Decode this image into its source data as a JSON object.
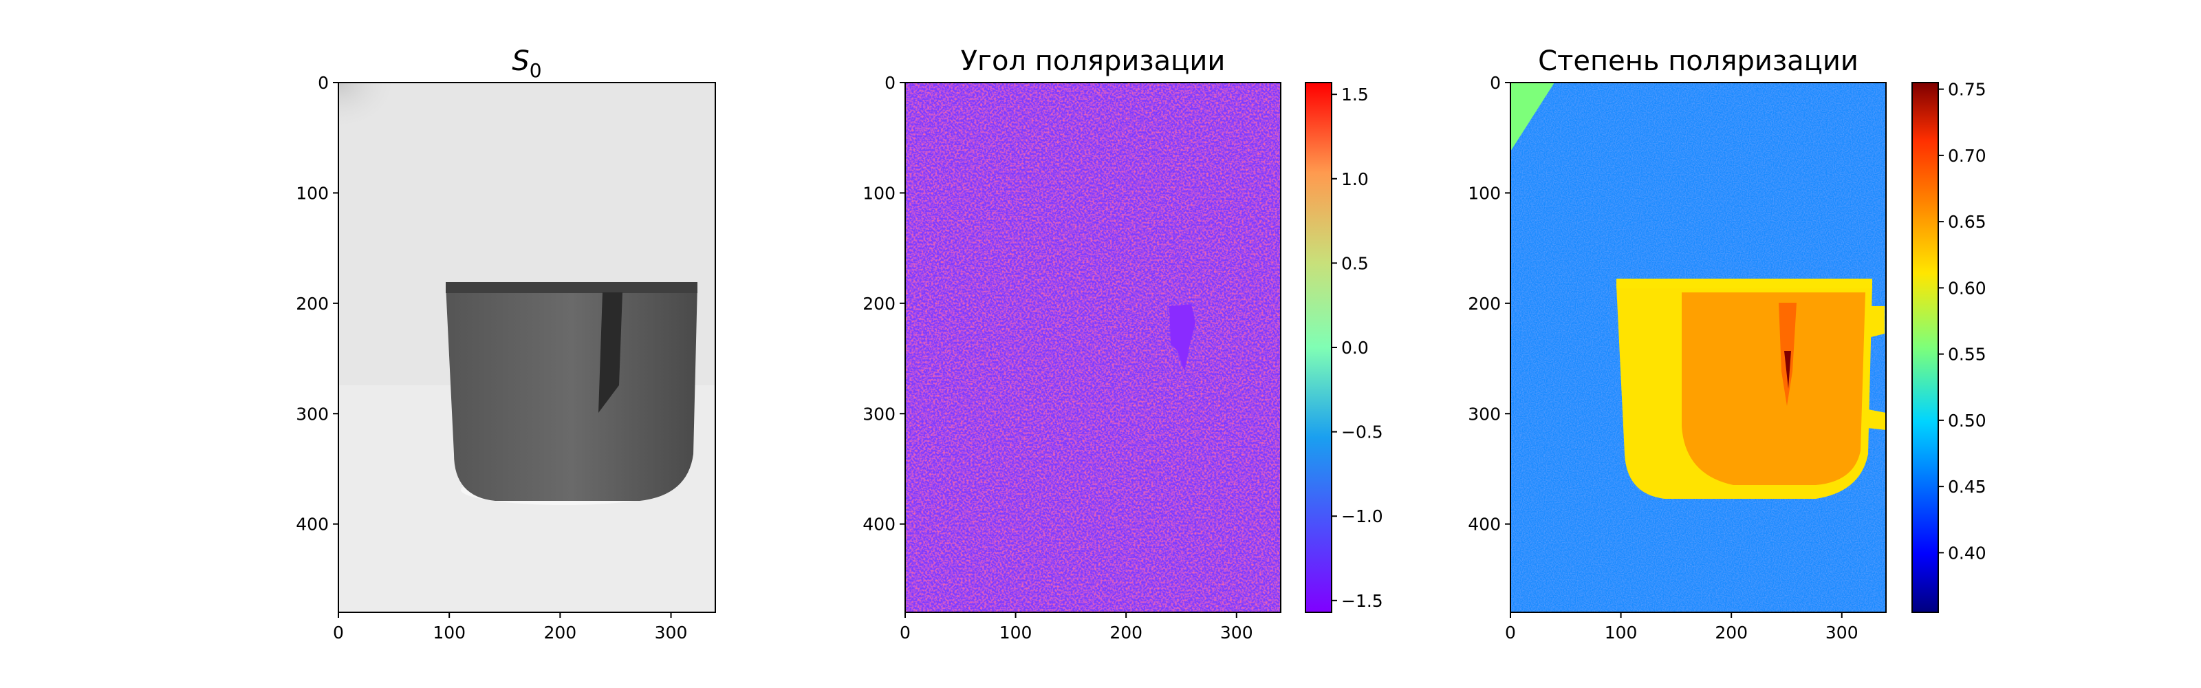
{
  "chart_data": [
    {
      "type": "heatmap",
      "title": "S",
      "title_subscript": "0",
      "colormap": "gray",
      "colorbar": false,
      "x_ticks": [
        0,
        100,
        200,
        300
      ],
      "y_ticks": [
        0,
        100,
        200,
        300,
        400
      ],
      "xlim": [
        0,
        340
      ],
      "ylim": [
        480,
        0
      ],
      "cup": {
        "x_range": [
          100,
          325
        ],
        "y_range": [
          180,
          380
        ],
        "handle_y_range": [
          205,
          305
        ],
        "dark_streak_x": [
          235,
          255
        ],
        "dark_streak_y": [
          190,
          300
        ]
      }
    },
    {
      "type": "heatmap",
      "title": "Угол поляризации",
      "colormap": "rainbow",
      "colorbar": true,
      "colorbar_ticks": [
        "1.5",
        "1.0",
        "0.5",
        "0.0",
        "−0.5",
        "−1.0",
        "−1.5"
      ],
      "colorbar_range": [
        -1.57,
        1.57
      ],
      "x_ticks": [
        0,
        100,
        200,
        300
      ],
      "y_ticks": [
        0,
        100,
        200,
        300,
        400
      ],
      "xlim": [
        0,
        340
      ],
      "ylim": [
        480,
        0
      ],
      "noise_palette": [
        "#ff2a1a",
        "#7a3dff",
        "#8a2bff",
        "#d14a8a",
        "#b0a0b8"
      ]
    },
    {
      "type": "heatmap",
      "title": "Степень поляризации",
      "colormap": "jet",
      "colorbar": true,
      "colorbar_ticks": [
        "0.75",
        "0.70",
        "0.65",
        "0.60",
        "0.55",
        "0.50",
        "0.45",
        "0.40"
      ],
      "colorbar_range": [
        0.355,
        0.755
      ],
      "x_ticks": [
        0,
        100,
        200,
        300
      ],
      "y_ticks": [
        0,
        100,
        200,
        300,
        400
      ],
      "xlim": [
        0,
        340
      ],
      "ylim": [
        480,
        0
      ],
      "background_value": 0.47,
      "cup_value": 0.64,
      "cup_rim_value": 0.59
    }
  ]
}
